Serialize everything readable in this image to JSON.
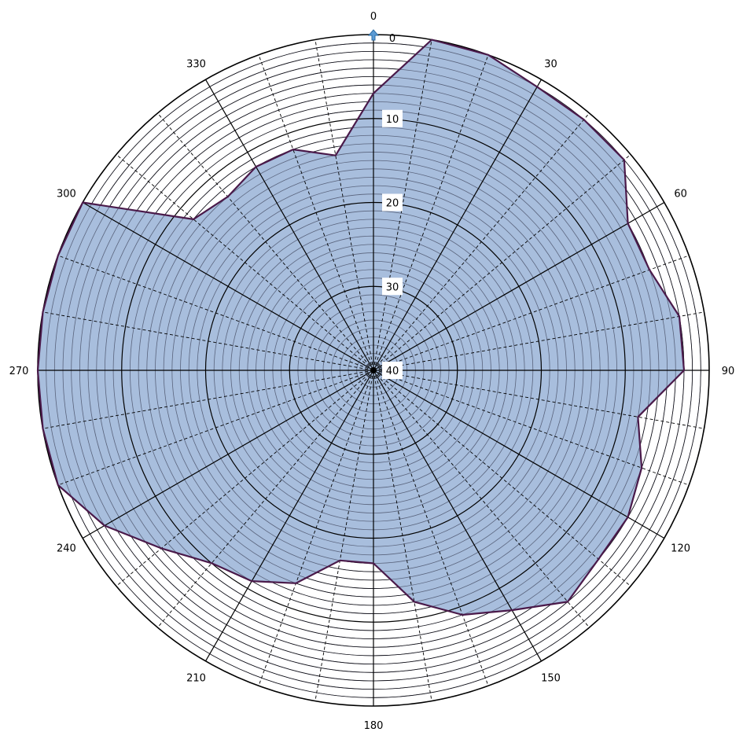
{
  "chart_data": {
    "type": "polar-area",
    "title": "",
    "angle_unit": "degrees",
    "angle_direction": "clockwise",
    "angle_zero": "top",
    "radial_axis": {
      "reversed": true,
      "outer_value": 0,
      "center_value": 40,
      "tick_labels": [
        "0",
        "10",
        "20",
        "30",
        "40"
      ],
      "tick_values": [
        0,
        10,
        20,
        30,
        40
      ],
      "minor_step": 1,
      "major_step": 10
    },
    "angular_axis": {
      "labels": [
        "0",
        "30",
        "60",
        "90",
        "120",
        "150",
        "180",
        "210",
        "240",
        "270",
        "300",
        "330"
      ],
      "major_step": 30,
      "minor_step": 10
    },
    "colors": {
      "fill": "#a8bedd",
      "outline": "#4a1a4a",
      "grid_major": "#000000",
      "grid_minor": "#000000",
      "marker": "#5b9bd5"
    },
    "series": [
      {
        "angles": [
          0,
          10,
          20,
          30,
          40,
          50,
          60,
          70,
          80,
          90,
          100,
          110,
          120,
          130,
          140,
          150,
          160,
          170,
          180,
          190,
          200,
          210,
          220,
          230,
          240,
          250,
          260,
          270,
          280,
          290,
          300,
          310,
          320,
          330,
          340,
          350
        ],
        "values": [
          7,
          0,
          0,
          1,
          1,
          1,
          5,
          5,
          3,
          3,
          8,
          6,
          5,
          5,
          4,
          7,
          9,
          12,
          17,
          17,
          13,
          11,
          10,
          7,
          3,
          0,
          0,
          0,
          0,
          0,
          0,
          12,
          13,
          12,
          12,
          14
        ]
      }
    ]
  }
}
